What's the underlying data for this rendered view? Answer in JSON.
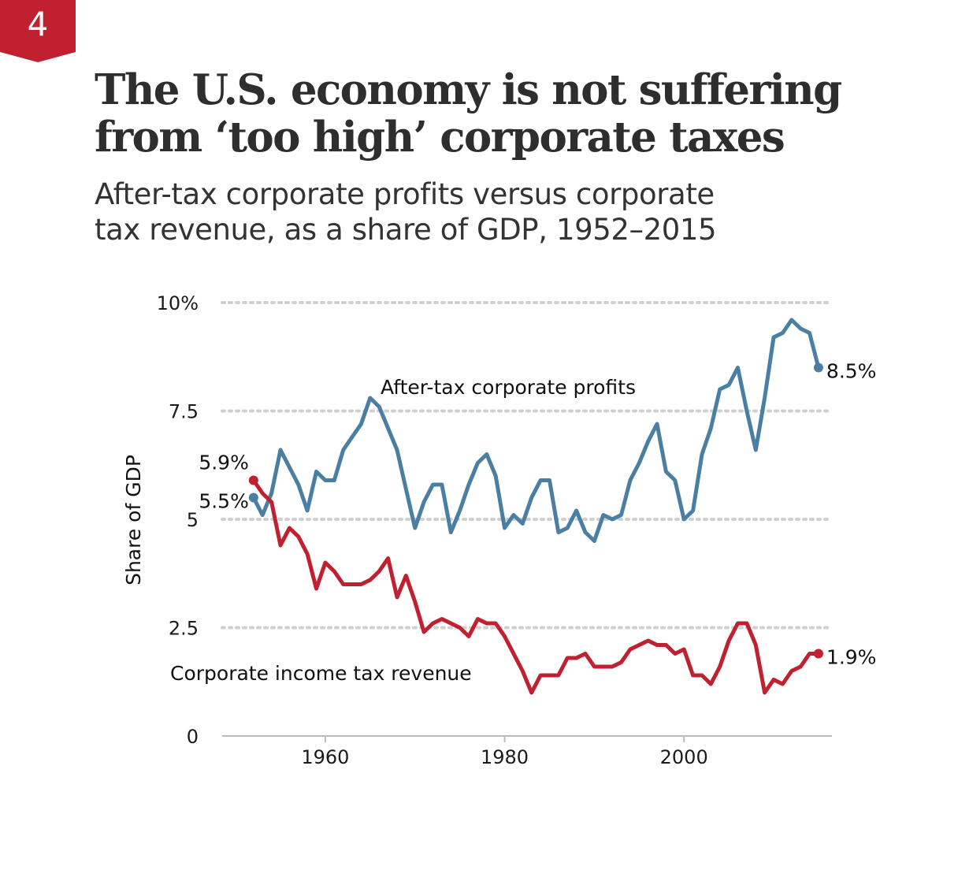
{
  "badge": {
    "number": "4"
  },
  "header": {
    "title_line1": "The U.S. economy is not suffering",
    "title_line2": "from ‘too high’ corporate taxes",
    "subtitle_line1": "After-tax corporate profits versus corporate",
    "subtitle_line2": "tax revenue, as a share of GDP, 1952–2015"
  },
  "colors": {
    "accent": "#c0202f",
    "profits": "#4a7fa3",
    "revenue": "#c0202f",
    "grid": "#d0d0d0",
    "axis": "#bbbbbb"
  },
  "chart_data": {
    "type": "line",
    "ylabel": "Share of GDP",
    "ylim": [
      0,
      10
    ],
    "xlim": [
      1948.5,
      2016.5
    ],
    "yticks": [
      {
        "value": 10,
        "label": "10%"
      },
      {
        "value": 7.5,
        "label": "7.5"
      },
      {
        "value": 5,
        "label": "5"
      },
      {
        "value": 2.5,
        "label": "2.5"
      },
      {
        "value": 0,
        "label": "0"
      }
    ],
    "xticks": [
      {
        "value": 1960,
        "label": "1960"
      },
      {
        "value": 1980,
        "label": "1980"
      },
      {
        "value": 2000,
        "label": "2000"
      }
    ],
    "grid": "horizontal dotted",
    "x": [
      1952,
      1953,
      1954,
      1955,
      1956,
      1957,
      1958,
      1959,
      1960,
      1961,
      1962,
      1963,
      1964,
      1965,
      1966,
      1967,
      1968,
      1969,
      1970,
      1971,
      1972,
      1973,
      1974,
      1975,
      1976,
      1977,
      1978,
      1979,
      1980,
      1981,
      1982,
      1983,
      1984,
      1985,
      1986,
      1987,
      1988,
      1989,
      1990,
      1991,
      1992,
      1993,
      1994,
      1995,
      1996,
      1997,
      1998,
      1999,
      2000,
      2001,
      2002,
      2003,
      2004,
      2005,
      2006,
      2007,
      2008,
      2009,
      2010,
      2011,
      2012,
      2013,
      2014,
      2015
    ],
    "series": [
      {
        "name": "After-tax corporate profits",
        "end_label": "8.5%",
        "start_label": "5.5%",
        "values": [
          5.5,
          5.1,
          5.6,
          6.6,
          6.2,
          5.8,
          5.2,
          6.1,
          5.9,
          5.9,
          6.6,
          6.9,
          7.2,
          7.8,
          7.6,
          7.1,
          6.6,
          5.7,
          4.8,
          5.4,
          5.8,
          5.8,
          4.7,
          5.2,
          5.8,
          6.3,
          6.5,
          6.0,
          4.8,
          5.1,
          4.9,
          5.5,
          5.9,
          5.9,
          4.7,
          4.8,
          5.2,
          4.7,
          4.5,
          5.1,
          5.0,
          5.1,
          5.9,
          6.3,
          6.8,
          7.2,
          6.1,
          5.9,
          5.0,
          5.2,
          6.5,
          7.1,
          8.0,
          8.1,
          8.5,
          7.5,
          6.6,
          7.8,
          9.2,
          9.3,
          9.6,
          9.4,
          9.3,
          8.5
        ]
      },
      {
        "name": "Corporate income tax revenue",
        "end_label": "1.9%",
        "start_label": "5.9%",
        "values": [
          5.9,
          5.6,
          5.4,
          4.4,
          4.8,
          4.6,
          4.2,
          3.4,
          4.0,
          3.8,
          3.5,
          3.5,
          3.5,
          3.6,
          3.8,
          4.1,
          3.2,
          3.7,
          3.1,
          2.4,
          2.6,
          2.7,
          2.6,
          2.5,
          2.3,
          2.7,
          2.6,
          2.6,
          2.3,
          1.9,
          1.5,
          1.0,
          1.4,
          1.4,
          1.4,
          1.8,
          1.8,
          1.9,
          1.6,
          1.6,
          1.6,
          1.7,
          2.0,
          2.1,
          2.2,
          2.1,
          2.1,
          1.9,
          2.0,
          1.4,
          1.4,
          1.2,
          1.6,
          2.2,
          2.6,
          2.6,
          2.1,
          1.0,
          1.3,
          1.2,
          1.5,
          1.6,
          1.9,
          1.9
        ]
      }
    ]
  }
}
